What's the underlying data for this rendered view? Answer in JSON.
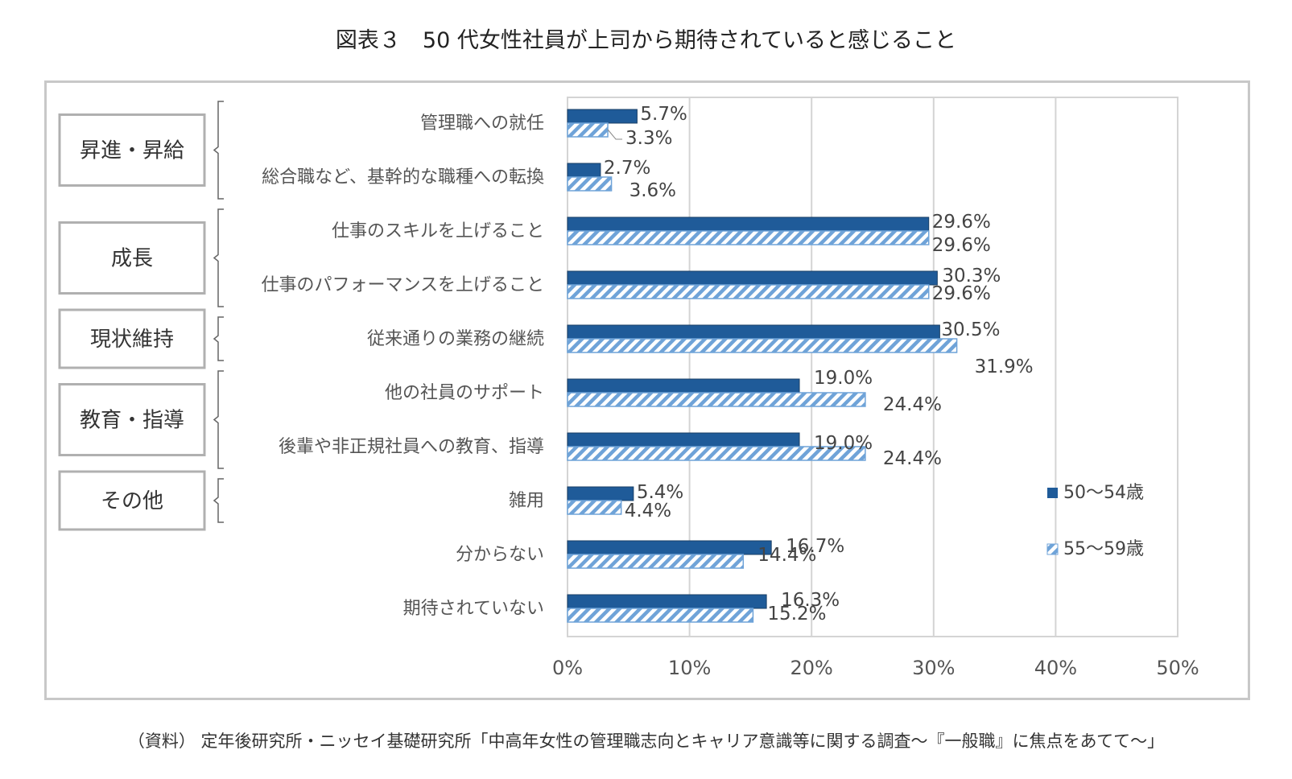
{
  "title": "図表３　50 代女性社員が上司から期待されていると感じること",
  "source": "（資料） 定年後研究所・ニッセイ基礎研究所「中高年女性の管理職志向とキャリア意識等に関する調査～『一般職』に焦点をあてて～」",
  "colors": {
    "series1": "#1f5b99",
    "series2": "#6fa3d8",
    "grid": "#d4d4d4",
    "box_border": "#b0b0b0"
  },
  "chart_data": {
    "type": "bar",
    "orientation": "horizontal",
    "categories": [
      "管理職への就任",
      "総合職など、基幹的な職種への転換",
      "仕事のスキルを上げること",
      "仕事のパフォーマンスを上げること",
      "従来通りの業務の継続",
      "他の社員のサポート",
      "後輩や非正規社員への教育、指導",
      "雑用",
      "分からない",
      "期待されていない"
    ],
    "series": [
      {
        "name": "50～54歳",
        "values": [
          5.7,
          2.7,
          29.6,
          30.3,
          30.5,
          19.0,
          19.0,
          5.4,
          16.7,
          16.3
        ],
        "labels": [
          "5.7%",
          "2.7%",
          "29.6%",
          "30.3%",
          "30.5%",
          "19.0%",
          "19.0%",
          "5.4%",
          "16.7%",
          "16.3%"
        ],
        "pattern": "solid"
      },
      {
        "name": "55～59歳",
        "values": [
          3.3,
          3.6,
          29.6,
          29.6,
          31.9,
          24.4,
          24.4,
          4.4,
          14.4,
          15.2
        ],
        "labels": [
          "3.3%",
          "3.6%",
          "29.6%",
          "29.6%",
          "31.9%",
          "24.4%",
          "24.4%",
          "4.4%",
          "14.4%",
          "15.2%"
        ],
        "pattern": "hatched"
      }
    ],
    "xlim": [
      0,
      50
    ],
    "xticks": [
      "0%",
      "10%",
      "20%",
      "30%",
      "40%",
      "50%"
    ],
    "grid": true,
    "legend_position": "right",
    "groups": [
      {
        "label": "昇進・昇給",
        "first": 0,
        "last": 1
      },
      {
        "label": "成長",
        "first": 2,
        "last": 3
      },
      {
        "label": "現状維持",
        "first": 4,
        "last": 4
      },
      {
        "label": "教育・指導",
        "first": 5,
        "last": 6
      },
      {
        "label": "その他",
        "first": 7,
        "last": 7
      }
    ]
  }
}
